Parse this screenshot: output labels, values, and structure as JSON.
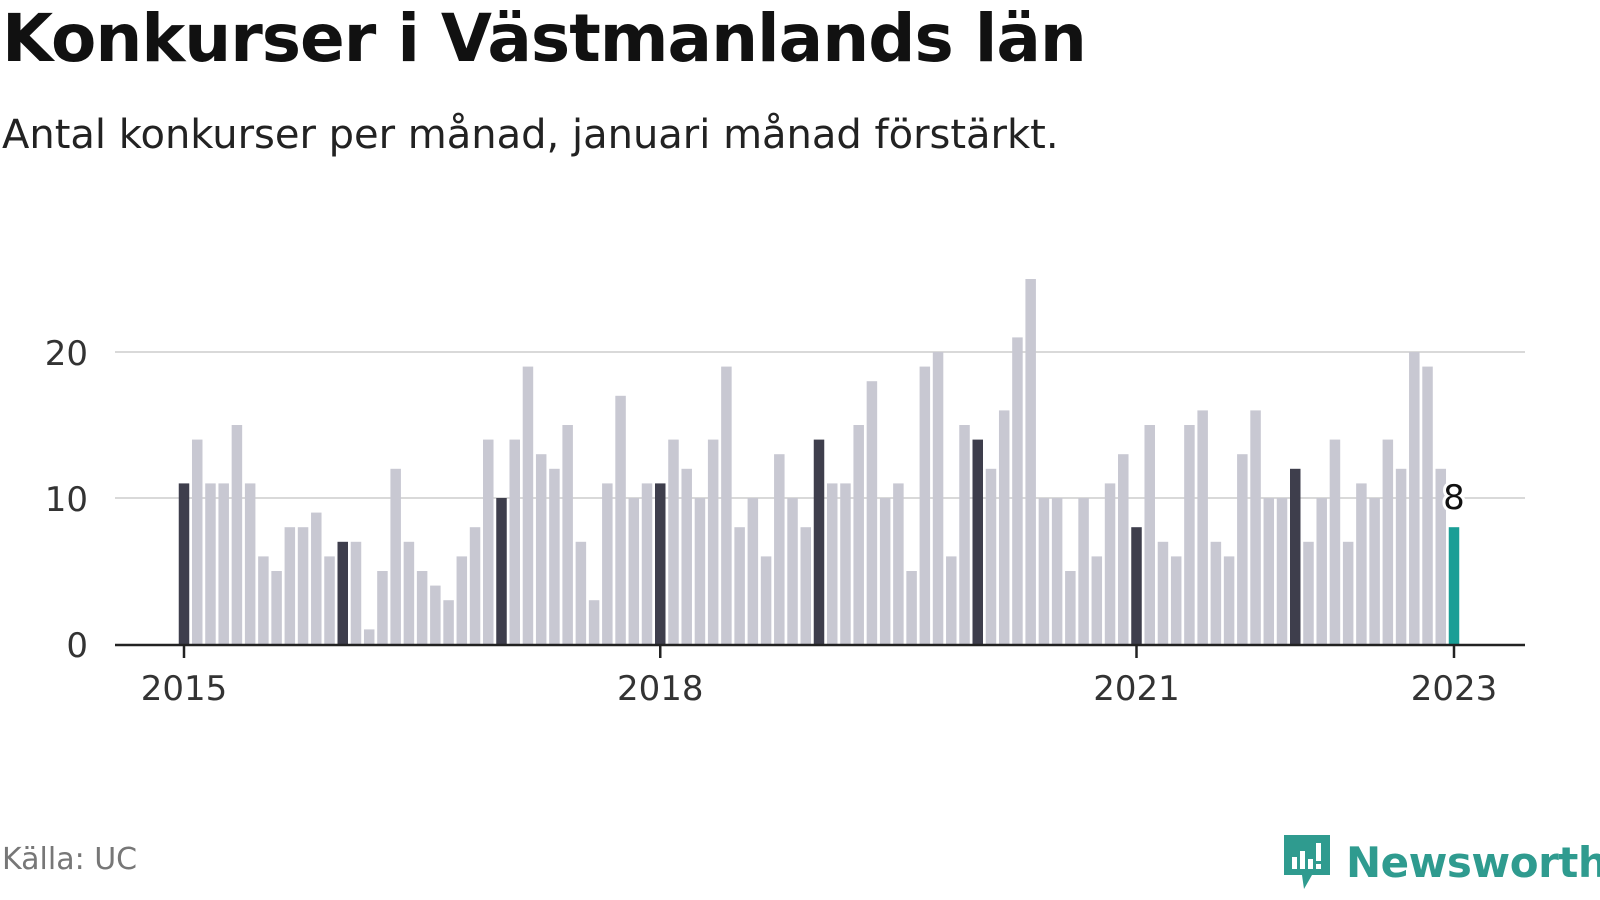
{
  "header": {
    "title": "Konkurser i Västmanlands län",
    "subtitle": "Antal konkurser per månad, januari månad förstärkt."
  },
  "footer": {
    "source": "Källa: UC",
    "brand": "Newsworthy",
    "brand_icon": "newsworthy-logo-icon"
  },
  "colors": {
    "bar": "#c8c8d2",
    "january": "#3e3e4c",
    "latest": "#1a9e96",
    "grid": "#d9d9d9",
    "axis": "#222222",
    "brand": "#2f9b8f"
  },
  "chart_data": {
    "type": "bar",
    "title": "Konkurser i Västmanlands län",
    "subtitle": "Antal konkurser per månad, januari månad förstärkt.",
    "start": "2015-01",
    "end": "2023-01",
    "x_tick_labels": [
      "2015",
      "2018",
      "2021",
      "2023"
    ],
    "y_ticks": [
      0,
      10,
      20
    ],
    "ylim": [
      0,
      25
    ],
    "grid": true,
    "highlight": "January of each year darker; latest month (2023-01) in teal",
    "latest_label": "8",
    "values": [
      11,
      14,
      11,
      11,
      15,
      11,
      6,
      5,
      8,
      8,
      9,
      6,
      7,
      7,
      1,
      5,
      12,
      7,
      5,
      4,
      3,
      6,
      8,
      14,
      10,
      14,
      19,
      13,
      12,
      15,
      7,
      3,
      11,
      17,
      10,
      11,
      11,
      14,
      12,
      10,
      14,
      19,
      8,
      10,
      6,
      13,
      10,
      8,
      14,
      11,
      11,
      15,
      18,
      10,
      11,
      5,
      19,
      20,
      6,
      15,
      14,
      12,
      16,
      21,
      25,
      10,
      10,
      5,
      10,
      6,
      11,
      13,
      8,
      15,
      7,
      6,
      15,
      16,
      7,
      6,
      13,
      16,
      10,
      10,
      12,
      7,
      10,
      14,
      7,
      11,
      10,
      14,
      12,
      20,
      19,
      12,
      8
    ]
  }
}
